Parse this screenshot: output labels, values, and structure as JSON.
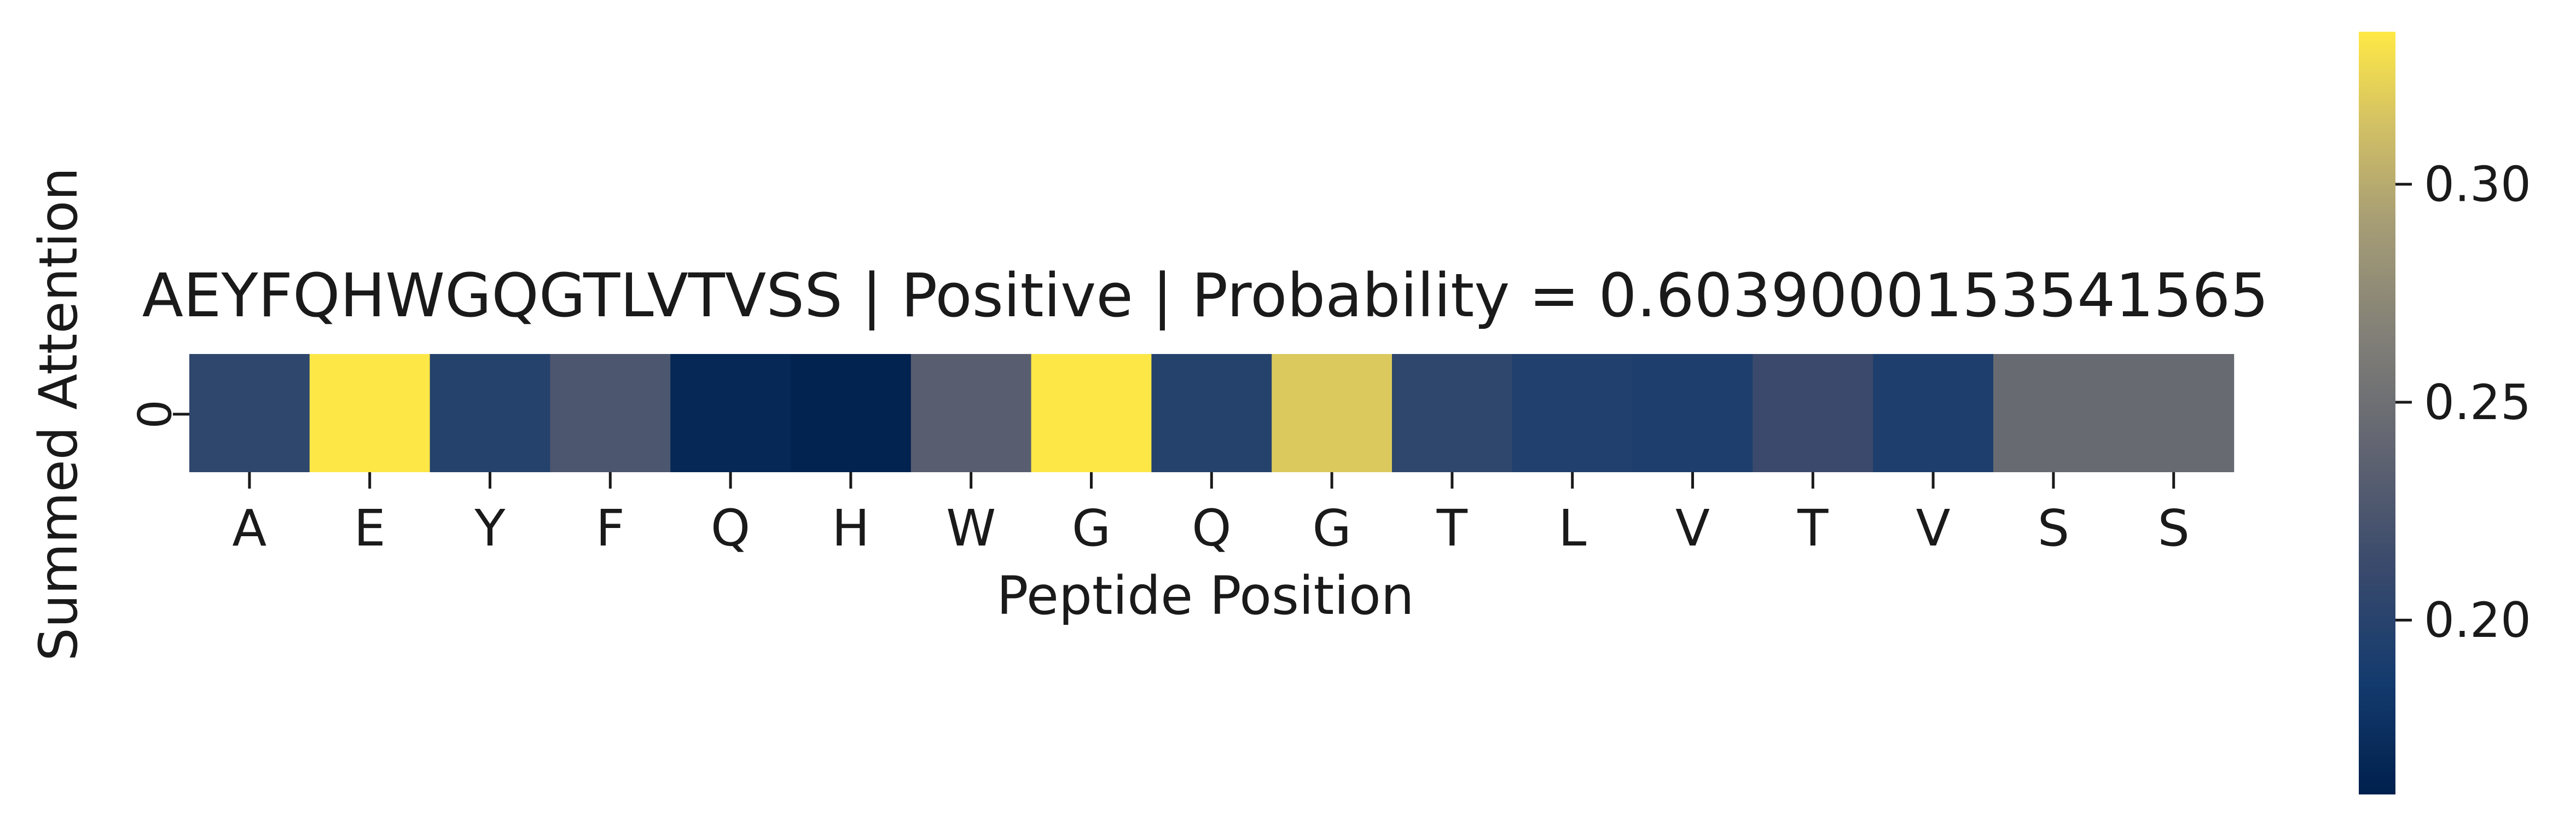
{
  "chart_data": {
    "type": "heatmap",
    "title": "AEYFQHWGQGTLVTVSS | Positive | Probability = 0.6039000153541565",
    "xlabel": "Peptide Position",
    "ylabel": "Summed Attention",
    "x_tick_labels": [
      "A",
      "E",
      "Y",
      "F",
      "Q",
      "H",
      "W",
      "G",
      "Q",
      "G",
      "T",
      "L",
      "V",
      "T",
      "V",
      "S",
      "S"
    ],
    "y_tick_labels": [
      "0"
    ],
    "values": [
      [
        0.205,
        0.334,
        0.198,
        0.225,
        0.168,
        0.162,
        0.233,
        0.334,
        0.198,
        0.318,
        0.205,
        0.195,
        0.193,
        0.213,
        0.193,
        0.245,
        0.245
      ]
    ],
    "colormap": "cividis",
    "colorbar": {
      "vmin": 0.16,
      "vmax": 0.335,
      "ticks": [
        0.2,
        0.25,
        0.3
      ],
      "tick_labels": [
        "0.20",
        "0.25",
        "0.30"
      ]
    }
  }
}
